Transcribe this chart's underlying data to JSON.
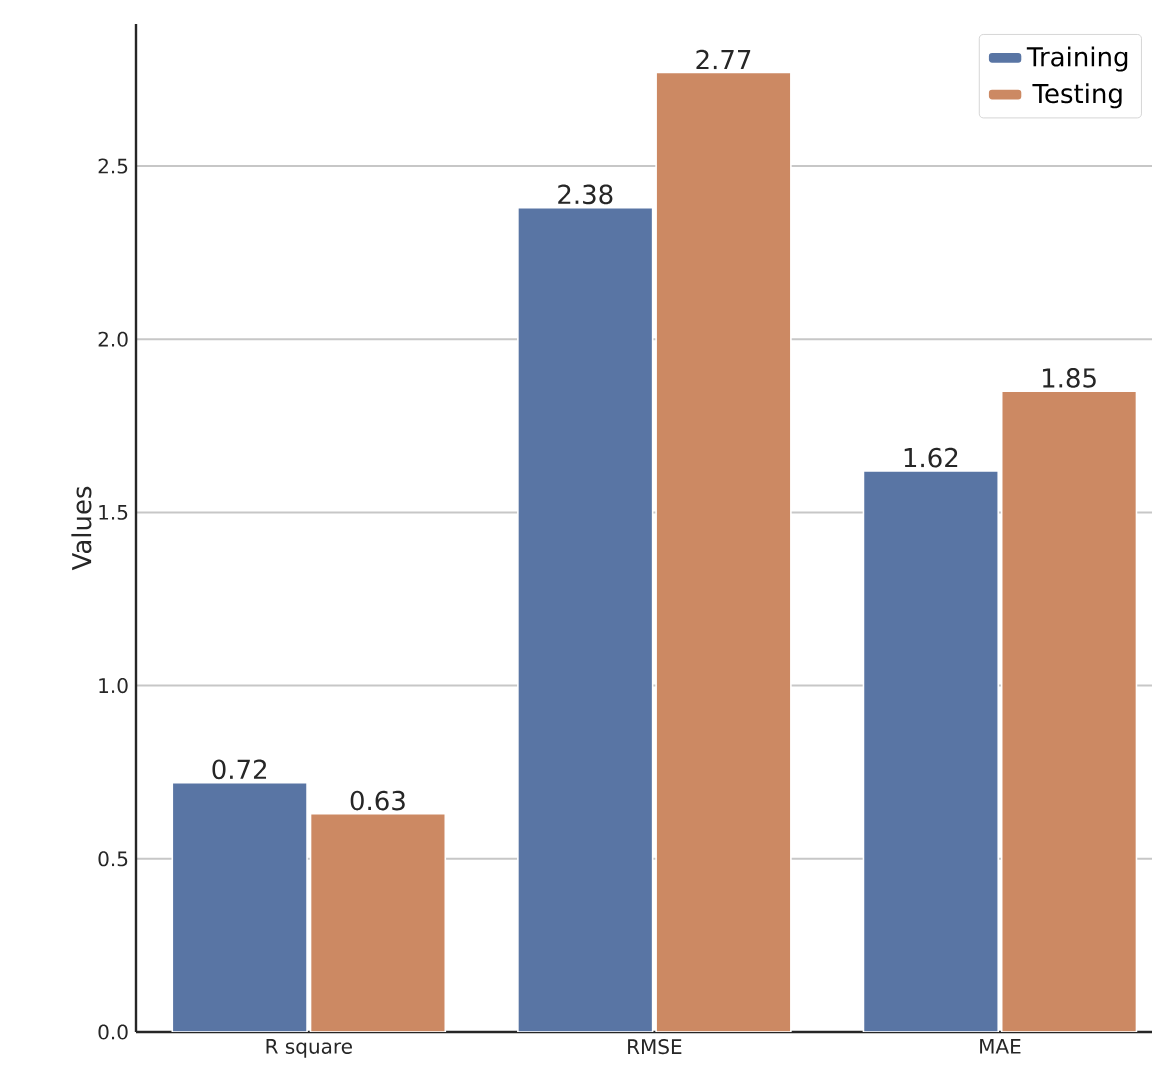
{
  "chart_data": {
    "type": "bar",
    "ylabel": "Values",
    "categories": [
      "R square",
      "RMSE",
      "MAE"
    ],
    "series": [
      {
        "name": "Training",
        "color": "#5975a4",
        "values": [
          0.72,
          2.38,
          1.62
        ]
      },
      {
        "name": "Testing",
        "color": "#cc8963",
        "values": [
          0.63,
          2.77,
          1.85
        ]
      }
    ],
    "ylim": [
      0,
      2.91
    ],
    "yticks": [
      {
        "value": 0,
        "label": "0.0"
      },
      0.5,
      {
        "value": 1,
        "label": "1.0"
      },
      1.5,
      {
        "value": 2,
        "label": "2.0"
      },
      2.5
    ],
    "grid": "y",
    "legend": "top right",
    "data_labels": true
  }
}
